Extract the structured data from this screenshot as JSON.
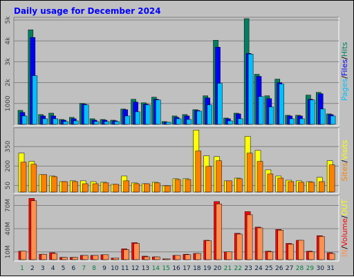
{
  "chart_data": [
    {
      "type": "bar",
      "title": "Daily usage for December 2024",
      "legend_separator": "/",
      "ylim": [
        0,
        5100
      ],
      "yticks": [
        {
          "value": 1000,
          "label": "1000"
        },
        {
          "value": 2000,
          "label": "2k"
        },
        {
          "value": 3000,
          "label": "3k"
        },
        {
          "value": 4000,
          "label": "4k"
        },
        {
          "value": 5000,
          "label": "5k"
        }
      ],
      "series": [
        {
          "name": "Hits",
          "color": "#008060",
          "values": [
            667,
            4533,
            467,
            533,
            233,
            333,
            1000,
            267,
            233,
            200,
            733,
            1200,
            1033,
            1300,
            133,
            400,
            467,
            700,
            1367,
            4033,
            300,
            533,
            5067,
            2400,
            1367,
            2167,
            433,
            433,
            1400,
            1533,
            500
          ]
        },
        {
          "name": "Files",
          "color": "#0000ff",
          "values": [
            567,
            4167,
            400,
            400,
            200,
            267,
            967,
            200,
            200,
            167,
            700,
            1067,
            967,
            1200,
            100,
            333,
            400,
            667,
            1267,
            3700,
            267,
            500,
            3400,
            2300,
            1233,
            2000,
            400,
            400,
            1200,
            1467,
            467
          ]
        },
        {
          "name": "Pages",
          "color": "#00c0ff",
          "values": [
            400,
            2333,
            267,
            267,
            133,
            167,
            933,
            133,
            133,
            133,
            400,
            600,
            933,
            1167,
            100,
            267,
            233,
            633,
            933,
            1967,
            167,
            267,
            3367,
            1333,
            833,
            1933,
            267,
            267,
            1167,
            733,
            400
          ]
        }
      ]
    },
    {
      "type": "bar",
      "legend_separator": "/",
      "ylim": [
        0,
        490
      ],
      "yticks": [
        50,
        200,
        350
      ],
      "series": [
        {
          "name": "Visits",
          "color": "#ffff00",
          "values": [
            300,
            236,
            134,
            123,
            80,
            86,
            86,
            80,
            75,
            59,
            123,
            70,
            64,
            75,
            48,
            102,
            102,
            477,
            279,
            273,
            86,
            107,
            429,
            321,
            171,
            123,
            91,
            86,
            80,
            113,
            241
          ]
        },
        {
          "name": "Sites",
          "color": "#ff8000",
          "values": [
            230,
            214,
            134,
            118,
            80,
            80,
            64,
            64,
            70,
            59,
            86,
            64,
            64,
            70,
            48,
            96,
            96,
            316,
            198,
            241,
            86,
            102,
            300,
            236,
            139,
            107,
            80,
            75,
            75,
            80,
            209
          ]
        }
      ]
    },
    {
      "type": "bar",
      "legend_separator": "/",
      "ylim": [
        0,
        82
      ],
      "yticks": [
        {
          "value": 10,
          "label": "10M"
        },
        {
          "value": 40,
          "label": "40M"
        },
        {
          "value": 70,
          "label": "70M"
        }
      ],
      "categories": [
        "1",
        "2",
        "3",
        "4",
        "5",
        "6",
        "7",
        "8",
        "9",
        "10",
        "11",
        "12",
        "13",
        "14",
        "15",
        "16",
        "17",
        "18",
        "19",
        "20",
        "21",
        "22",
        "23",
        "24",
        "25",
        "26",
        "27",
        "28",
        "29",
        "30",
        "31"
      ],
      "weekend": [
        true,
        false,
        false,
        false,
        false,
        false,
        true,
        true,
        false,
        false,
        false,
        false,
        false,
        true,
        true,
        false,
        false,
        false,
        false,
        false,
        true,
        true,
        false,
        false,
        false,
        false,
        false,
        true,
        true,
        false,
        false
      ],
      "series": [
        {
          "name": "Volume",
          "color": "#ff0000",
          "values": [
            11,
            79,
            7,
            9,
            3,
            3,
            5.5,
            5.5,
            6.4,
            2,
            14,
            22,
            4.5,
            3.6,
            1,
            5.5,
            7,
            8,
            25,
            75,
            10,
            34,
            62,
            42,
            11,
            39,
            21,
            25,
            11,
            31,
            9
          ]
        },
        {
          "name": "IN",
          "color": "#ff9050",
          "values": [
            11,
            76,
            7,
            8,
            3,
            3,
            5.5,
            5.5,
            6.4,
            2,
            13,
            21,
            3.6,
            3.6,
            1,
            5.5,
            6.4,
            8,
            24.5,
            72,
            10,
            33,
            58,
            41,
            10,
            38,
            20,
            25,
            10,
            30,
            8
          ]
        }
      ],
      "extra_legend": {
        "name": "OUT",
        "color": "#ffff00"
      }
    }
  ]
}
